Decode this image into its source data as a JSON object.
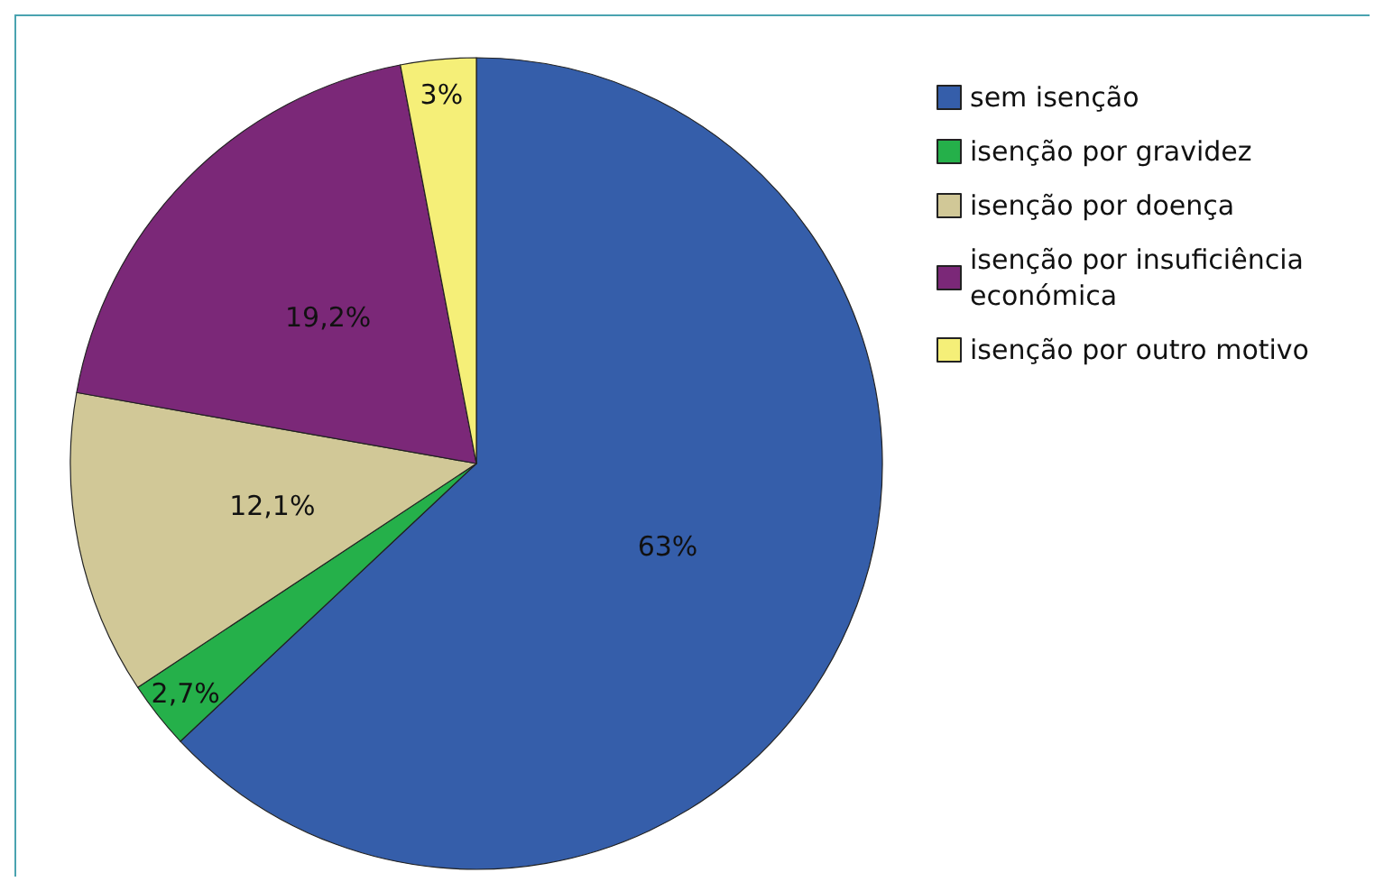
{
  "chart_data": {
    "type": "pie",
    "categories": [
      "sem isenção",
      "isenção por gravidez",
      "isenção por doença",
      "isenção por insuficiência económica",
      "isenção por outro motivo"
    ],
    "values": [
      63,
      2.7,
      12.1,
      19.2,
      3
    ],
    "value_labels": [
      "63%",
      "2,7%",
      "12,1%",
      "19,2%",
      "3%"
    ],
    "colors": [
      "#355eaa",
      "#25b04a",
      "#d1c897",
      "#7b2878",
      "#f5ef78"
    ],
    "legend": "top right"
  }
}
